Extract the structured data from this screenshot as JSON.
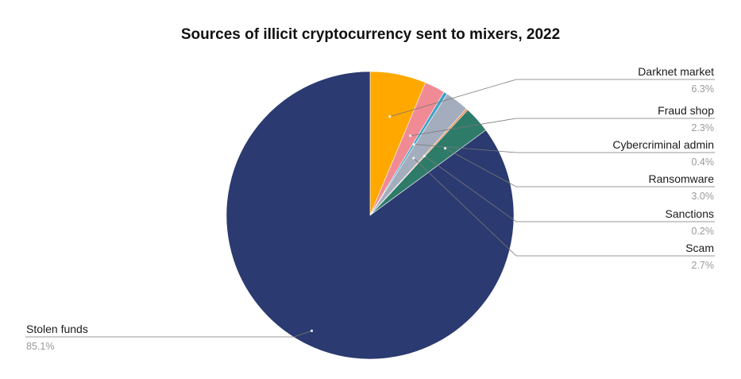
{
  "chart_data": {
    "type": "pie",
    "title": "Sources of illicit cryptocurrency sent to mixers, 2022",
    "slices": [
      {
        "label": "Darknet market",
        "value": 6.3,
        "display": "6.3%",
        "color": "#ffa800"
      },
      {
        "label": "Fraud shop",
        "value": 2.3,
        "display": "2.3%",
        "color": "#f08a94"
      },
      {
        "label": "Cybercriminal admin",
        "value": 0.4,
        "display": "0.4%",
        "color": "#3aa3c6"
      },
      {
        "label": "Scam",
        "value": 2.7,
        "display": "2.7%",
        "color": "#a4adbd"
      },
      {
        "label": "Sanctions",
        "value": 0.2,
        "display": "0.2%",
        "color": "#f07f3c"
      },
      {
        "label": "Ransomware",
        "value": 3.0,
        "display": "3.0%",
        "color": "#2f7b6a"
      },
      {
        "label": "Stolen funds",
        "value": 85.1,
        "display": "85.1%",
        "color": "#2b3a70"
      }
    ]
  }
}
